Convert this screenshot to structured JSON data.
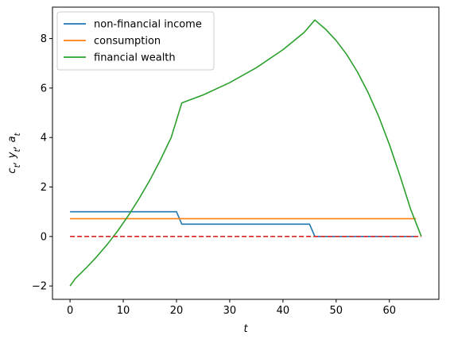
{
  "chart_data": {
    "type": "line",
    "xlabel": "t",
    "ylabel": "c_t, y_t, a_t",
    "xlim": [
      -3.3,
      69.3
    ],
    "ylim": [
      -2.54,
      9.27
    ],
    "xticks": [
      0,
      10,
      20,
      30,
      40,
      50,
      60
    ],
    "yticks": [
      -2,
      0,
      2,
      4,
      6,
      8
    ],
    "grid": false,
    "legend_position": "top-left",
    "series": [
      {
        "name": "non-financial income",
        "color": "#1f77b4",
        "style": "solid",
        "x": [
          0,
          20,
          21,
          45,
          46,
          65
        ],
        "y": [
          1.0,
          1.0,
          0.5,
          0.5,
          0.0,
          0.0
        ]
      },
      {
        "name": "consumption",
        "color": "#ff7f0e",
        "style": "solid",
        "x": [
          0,
          65
        ],
        "y": [
          0.72,
          0.72
        ]
      },
      {
        "name": "financial wealth",
        "color": "#2ca02c",
        "style": "solid",
        "x": [
          0,
          1,
          3,
          5,
          7,
          9,
          11,
          13,
          15,
          17,
          19,
          21,
          25,
          30,
          35,
          40,
          44,
          46,
          48,
          50,
          52,
          54,
          56,
          58,
          60,
          62,
          64,
          66
        ],
        "y": [
          -2.0,
          -1.7,
          -1.28,
          -0.82,
          -0.32,
          0.24,
          0.86,
          1.54,
          2.28,
          3.1,
          4.0,
          5.4,
          5.72,
          6.22,
          6.82,
          7.55,
          8.25,
          8.75,
          8.38,
          7.92,
          7.35,
          6.65,
          5.82,
          4.85,
          3.72,
          2.45,
          1.1,
          0.0
        ]
      },
      {
        "name": "",
        "color": "#d62728",
        "style": "dashed",
        "x": [
          0,
          66
        ],
        "y": [
          0.0,
          0.0
        ]
      }
    ]
  }
}
